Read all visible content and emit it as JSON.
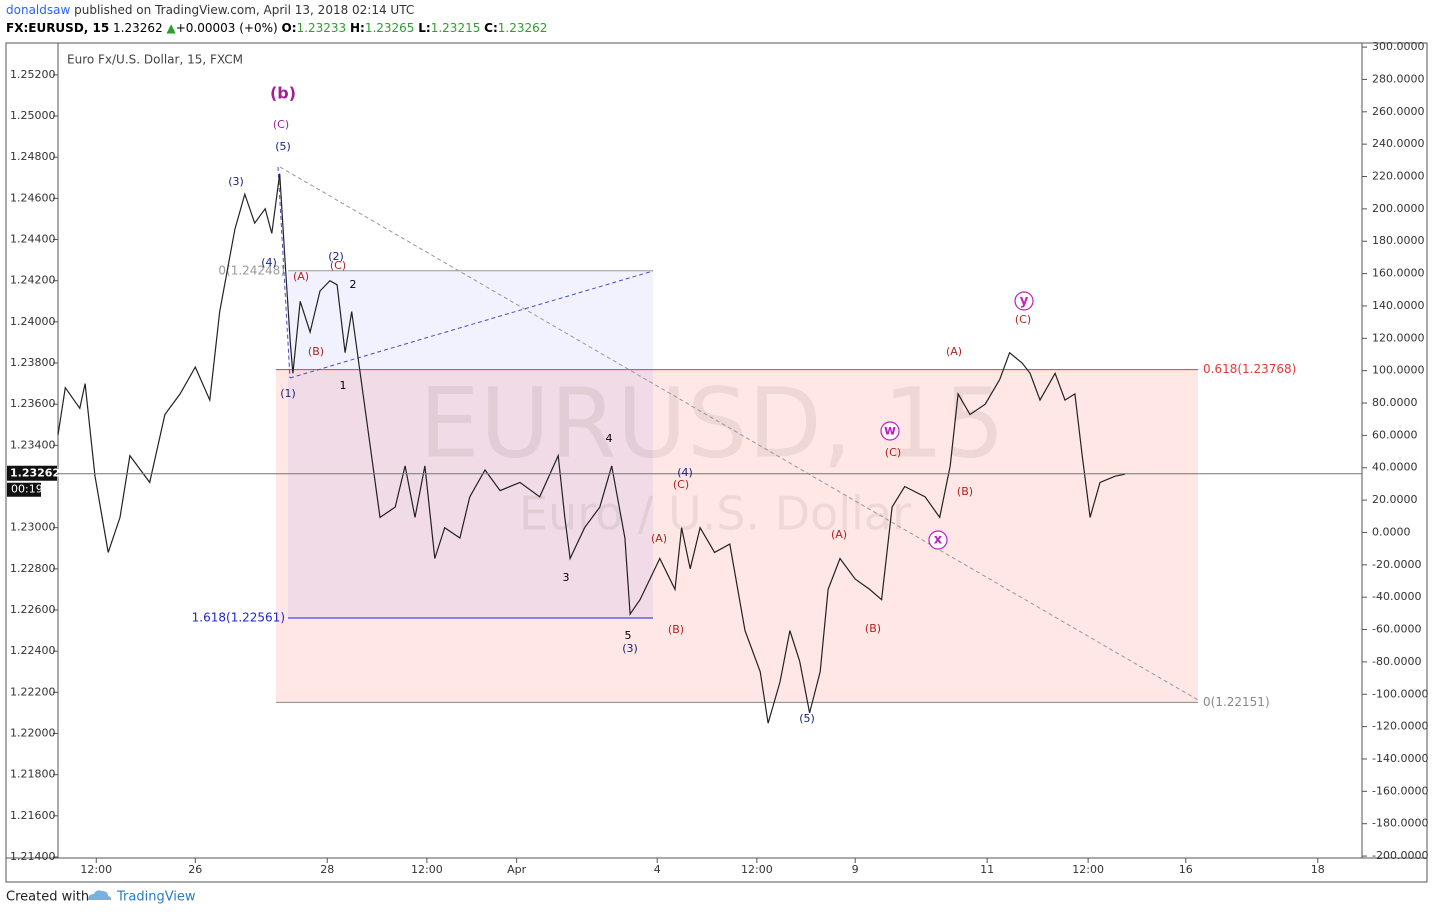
{
  "header": {
    "author": "donaldsaw",
    "published": "published on TradingView.com, April 13, 2018 02:14 UTC",
    "symbol": "FX:EURUSD, 15",
    "arrow": "▲",
    "change": "+0.00003 (+0%)",
    "o_label": "O:",
    "o": "1.23233",
    "h_label": "H:",
    "h": "1.23265",
    "l_label": "L:",
    "l": "1.23215",
    "c_label": "C:"
  },
  "footer": {
    "created": "Created with",
    "brand": "TradingView"
  },
  "chart_data": {
    "type": "line",
    "legend": "Euro Fx/U.S. Dollar, 15, FXCM",
    "watermark": "EURUSD, 15",
    "watermark_sub": "Euro / U.S. Dollar",
    "color": "#222222",
    "grid": false,
    "last_price": {
      "value": 1.23262,
      "label": "1.23262"
    },
    "countdown": "00:19",
    "x": [
      0,
      0.11,
      0.33,
      0.41,
      0.56,
      0.76,
      0.94,
      1.09,
      1.39,
      1.62,
      1.85,
      2.08,
      2.3,
      2.45,
      2.68,
      2.83,
      2.98,
      3.14,
      3.24,
      3.36,
      3.44,
      3.52,
      3.56,
      3.67,
      3.82,
      3.97,
      4.12,
      4.23,
      4.35,
      4.45,
      4.58,
      4.73,
      4.88,
      5.11,
      5.26,
      5.41,
      5.56,
      5.71,
      5.86,
      6.09,
      6.24,
      6.47,
      6.7,
      7.0,
      7.3,
      7.58,
      7.68,
      7.76,
      7.98,
      8.21,
      8.39,
      8.59,
      8.67,
      8.82,
      9.12,
      9.35,
      9.45,
      9.58,
      9.73,
      9.95,
      10.18,
      10.41,
      10.64,
      10.76,
      10.94,
      11.09,
      11.24,
      11.39,
      11.55,
      11.67,
      11.85,
      12.08,
      12.3,
      12.48,
      12.64,
      12.83,
      13.14,
      13.36,
      13.52,
      13.64,
      13.82,
      14.05,
      14.27,
      14.42,
      14.61,
      14.73,
      14.88,
      15.11,
      15.26,
      15.41,
      15.52,
      15.64,
      15.79,
      16.02,
      16.17
    ],
    "values": [
      1.2345,
      1.2368,
      1.2358,
      1.237,
      1.2325,
      1.2288,
      1.2305,
      1.2335,
      1.2322,
      1.2355,
      1.2365,
      1.2378,
      1.2362,
      1.2405,
      1.2445,
      1.2462,
      1.2448,
      1.2455,
      1.2443,
      1.2472,
      1.243,
      1.239,
      1.2375,
      1.241,
      1.2395,
      1.2415,
      1.242,
      1.2418,
      1.2385,
      1.2405,
      1.2375,
      1.234,
      1.2305,
      1.231,
      1.233,
      1.2305,
      1.233,
      1.2285,
      1.23,
      1.2295,
      1.2315,
      1.2328,
      1.2318,
      1.2322,
      1.2315,
      1.2335,
      1.2305,
      1.2285,
      1.23,
      1.231,
      1.233,
      1.2295,
      1.2258,
      1.2265,
      1.2285,
      1.227,
      1.23,
      1.228,
      1.23,
      1.2288,
      1.2292,
      1.225,
      1.223,
      1.2205,
      1.2225,
      1.225,
      1.2235,
      1.221,
      1.223,
      1.227,
      1.2285,
      1.2275,
      1.227,
      1.2265,
      1.231,
      1.232,
      1.2315,
      1.2305,
      1.233,
      1.2365,
      1.2355,
      1.236,
      1.2372,
      1.2385,
      1.238,
      1.2375,
      1.2362,
      1.2375,
      1.2362,
      1.2365,
      1.2335,
      1.2305,
      1.2322,
      1.2325,
      1.2326
    ],
    "xlim": [
      0,
      19.76
    ],
    "xticks": [
      {
        "value": 0.58,
        "label": "12:00"
      },
      {
        "value": 2.08,
        "label": "26"
      },
      {
        "value": 4.08,
        "label": "28"
      },
      {
        "value": 5.59,
        "label": "12:00"
      },
      {
        "value": 6.95,
        "label": "Apr"
      },
      {
        "value": 9.08,
        "label": "4"
      },
      {
        "value": 10.59,
        "label": "12:00"
      },
      {
        "value": 12.08,
        "label": "9"
      },
      {
        "value": 14.08,
        "label": "11"
      },
      {
        "value": 15.61,
        "label": "12:00"
      },
      {
        "value": 17.09,
        "label": "16"
      },
      {
        "value": 19.09,
        "label": "18"
      }
    ],
    "ylim": [
      1.21395,
      1.2535
    ],
    "yticks": [
      {
        "value": 1.252,
        "label": "1.25200"
      },
      {
        "value": 1.25,
        "label": "1.25000"
      },
      {
        "value": 1.248,
        "label": "1.24800"
      },
      {
        "value": 1.246,
        "label": "1.24600"
      },
      {
        "value": 1.244,
        "label": "1.24400"
      },
      {
        "value": 1.242,
        "label": "1.24200"
      },
      {
        "value": 1.24,
        "label": "1.24000"
      },
      {
        "value": 1.238,
        "label": "1.23800"
      },
      {
        "value": 1.236,
        "label": "1.23600"
      },
      {
        "value": 1.234,
        "label": "1.23400"
      },
      {
        "value": 1.23,
        "label": "1.23000"
      },
      {
        "value": 1.228,
        "label": "1.22800"
      },
      {
        "value": 1.226,
        "label": "1.22600"
      },
      {
        "value": 1.224,
        "label": "1.22400"
      },
      {
        "value": 1.222,
        "label": "1.22200"
      },
      {
        "value": 1.22,
        "label": "1.22000"
      },
      {
        "value": 1.218,
        "label": "1.21800"
      },
      {
        "value": 1.216,
        "label": "1.21600"
      },
      {
        "value": 1.214,
        "label": "1.21400"
      }
    ],
    "y2lim": [
      -201.2,
      301.9
    ],
    "y2ticks": [
      {
        "value": 300,
        "label": "300.0000"
      },
      {
        "value": 280,
        "label": "280.0000"
      },
      {
        "value": 260,
        "label": "260.0000"
      },
      {
        "value": 240,
        "label": "240.0000"
      },
      {
        "value": 220,
        "label": "220.0000"
      },
      {
        "value": 200,
        "label": "200.0000"
      },
      {
        "value": 180,
        "label": "180.0000"
      },
      {
        "value": 160,
        "label": "160.0000"
      },
      {
        "value": 140,
        "label": "140.0000"
      },
      {
        "value": 120,
        "label": "120.0000"
      },
      {
        "value": 100,
        "label": "100.0000"
      },
      {
        "value": 80,
        "label": "80.0000"
      },
      {
        "value": 60,
        "label": "60.0000"
      },
      {
        "value": 40,
        "label": "40.0000"
      },
      {
        "value": 20,
        "label": "20.0000"
      },
      {
        "value": 0,
        "label": "0.0000"
      },
      {
        "value": -20,
        "label": "-20.0000"
      },
      {
        "value": -40,
        "label": "-40.0000"
      },
      {
        "value": -60,
        "label": "-60.0000"
      },
      {
        "value": -80,
        "label": "-80.0000"
      },
      {
        "value": -100,
        "label": "-100.0000"
      },
      {
        "value": -120,
        "label": "-120.0000"
      },
      {
        "value": -140,
        "label": "-140.0000"
      },
      {
        "value": -160,
        "label": "-160.0000"
      },
      {
        "value": -180,
        "label": "-180.0000"
      },
      {
        "value": -200,
        "label": "-200.0000"
      }
    ],
    "fib_levels": [
      {
        "label": "0.618(1.23768)",
        "value": 1.23768,
        "color": "#e53935"
      },
      {
        "label": "0(1.22151)",
        "value": 1.22151,
        "color": "#888888"
      },
      {
        "label": "1.618(1.22561)",
        "value": 1.22561,
        "color": "#2323d6"
      },
      {
        "label": "0(1.24248)",
        "value": 1.24248,
        "color": "#999999"
      }
    ],
    "annotations": [
      {
        "text": "(b)",
        "color": "#a0209c"
      },
      {
        "text": "(C)",
        "color": "#a0209c"
      },
      {
        "text": "(5)",
        "color": "#1a237e"
      },
      {
        "text": "(3)",
        "color": "#1a237e"
      },
      {
        "text": "(4)",
        "color": "#1a237e"
      },
      {
        "text": "(A)",
        "color": "#b22222"
      },
      {
        "text": "(2)",
        "color": "#1a237e"
      },
      {
        "text": "(C)",
        "color": "#b22222"
      },
      {
        "text": "2",
        "color": "#000000"
      },
      {
        "text": "(B)",
        "color": "#b22222"
      },
      {
        "text": "(1)",
        "color": "#1a237e"
      },
      {
        "text": "1",
        "color": "#000000"
      },
      {
        "text": "4",
        "color": "#000000"
      },
      {
        "text": "3",
        "color": "#000000"
      },
      {
        "text": "5",
        "color": "#000000"
      },
      {
        "text": "(3)",
        "color": "#1a237e"
      },
      {
        "text": "(4)",
        "color": "#1a237e"
      },
      {
        "text": "(C)",
        "color": "#b22222"
      },
      {
        "text": "(A)",
        "color": "#b22222"
      },
      {
        "text": "(B)",
        "color": "#b22222"
      },
      {
        "text": "(5)",
        "color": "#1a237e"
      },
      {
        "text": "(A)",
        "color": "#b22222"
      },
      {
        "text": "(B)",
        "color": "#b22222"
      },
      {
        "text": "w",
        "color": "#c020c0",
        "circled": true
      },
      {
        "text": "(C)",
        "color": "#b22222"
      },
      {
        "text": "x",
        "color": "#c020c0",
        "circled": true
      },
      {
        "text": "(B)",
        "color": "#b22222"
      },
      {
        "text": "(A)",
        "color": "#b22222"
      },
      {
        "text": "y",
        "color": "#c020c0",
        "circled": true
      },
      {
        "text": "(C)",
        "color": "#b22222"
      }
    ]
  }
}
